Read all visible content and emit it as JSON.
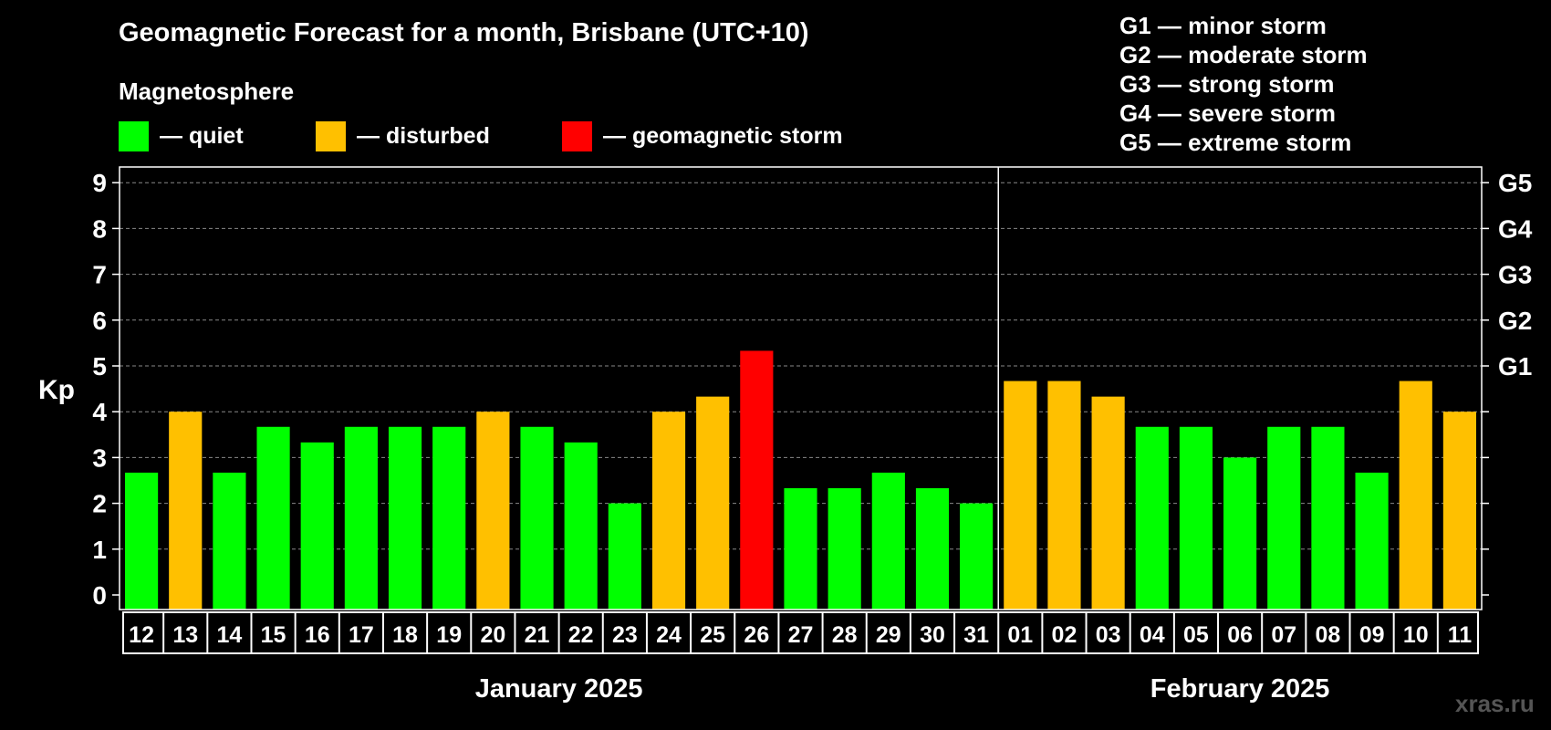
{
  "title": "Geomagnetic Forecast for a month, Brisbane (UTC+10)",
  "magnetosphere": {
    "title": "Magnetosphere",
    "legend": [
      {
        "label": "— quiet",
        "color": "#00ff00"
      },
      {
        "label": "— disturbed",
        "color": "#ffc000"
      },
      {
        "label": "— geomagnetic storm",
        "color": "#ff0000"
      }
    ]
  },
  "storm_scale": [
    "G1 — minor storm",
    "G2 — moderate storm",
    "G3 — strong storm",
    "G4 — severe storm",
    "G5 — extreme storm"
  ],
  "watermark": "xras.ru",
  "colors": {
    "quiet": "#00ff00",
    "disturbed": "#ffc000",
    "storm": "#ff0000",
    "background": "#000000",
    "grid": "#888888"
  },
  "chart_data": {
    "type": "bar",
    "ylabel": "Kp",
    "ylim": [
      0,
      9
    ],
    "yticks": [
      0,
      1,
      2,
      3,
      4,
      5,
      6,
      7,
      8,
      9
    ],
    "right_labels": [
      {
        "value": 5,
        "label": "G1"
      },
      {
        "value": 6,
        "label": "G2"
      },
      {
        "value": 7,
        "label": "G3"
      },
      {
        "value": 8,
        "label": "G4"
      },
      {
        "value": 9,
        "label": "G5"
      }
    ],
    "grid": "dashed horizontal",
    "categories": [
      "12",
      "13",
      "14",
      "15",
      "16",
      "17",
      "18",
      "19",
      "20",
      "21",
      "22",
      "23",
      "24",
      "25",
      "26",
      "27",
      "28",
      "29",
      "30",
      "31",
      "01",
      "02",
      "03",
      "04",
      "05",
      "06",
      "07",
      "08",
      "09",
      "10",
      "11"
    ],
    "values": [
      2.67,
      4,
      2.67,
      3.67,
      3.33,
      3.67,
      3.67,
      3.67,
      4,
      3.67,
      3.33,
      2,
      4,
      4.33,
      5.33,
      2.33,
      2.33,
      2.67,
      2.33,
      2,
      4.67,
      4.67,
      4.33,
      3.67,
      3.67,
      3,
      3.67,
      3.67,
      2.67,
      4.67,
      4
    ],
    "levels": [
      "quiet",
      "disturbed",
      "quiet",
      "quiet",
      "quiet",
      "quiet",
      "quiet",
      "quiet",
      "disturbed",
      "quiet",
      "quiet",
      "quiet",
      "disturbed",
      "disturbed",
      "storm",
      "quiet",
      "quiet",
      "quiet",
      "quiet",
      "quiet",
      "disturbed",
      "disturbed",
      "disturbed",
      "quiet",
      "quiet",
      "quiet",
      "quiet",
      "quiet",
      "quiet",
      "disturbed",
      "disturbed"
    ],
    "months": [
      {
        "label": "January 2025",
        "start": 0,
        "end": 19
      },
      {
        "label": "February 2025",
        "start": 20,
        "end": 30
      }
    ]
  }
}
